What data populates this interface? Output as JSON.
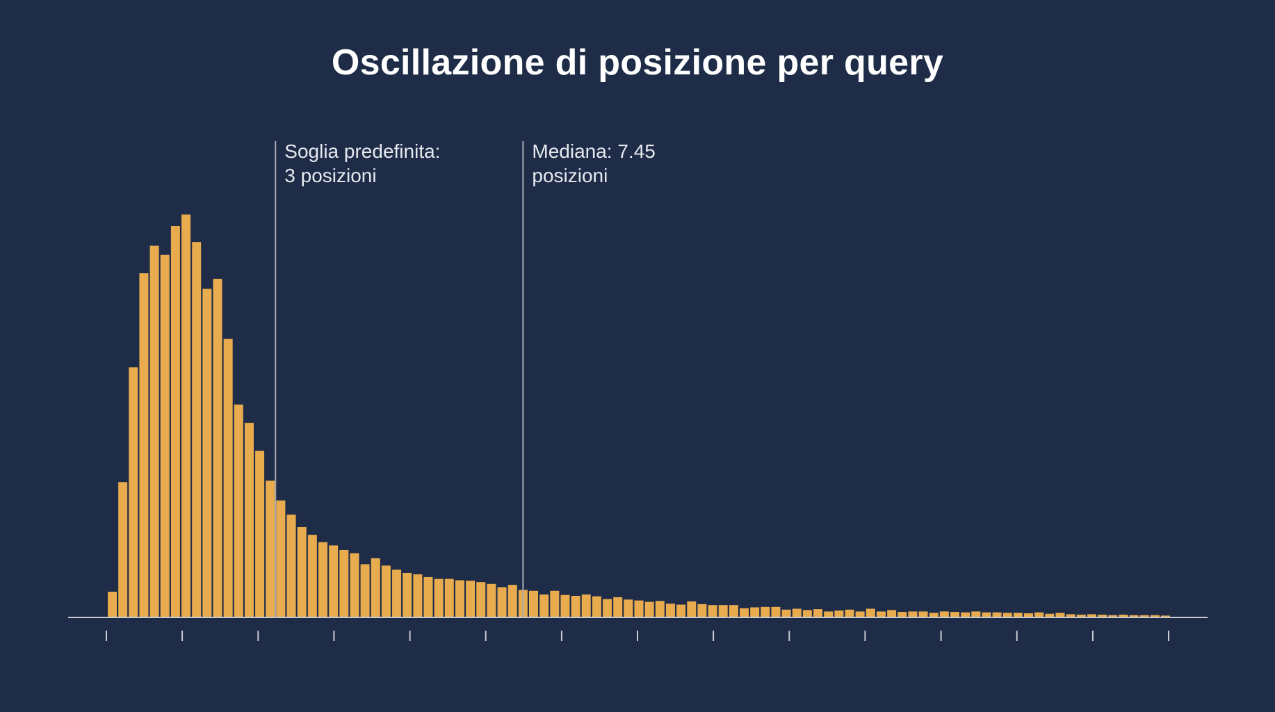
{
  "chart_data": {
    "type": "bar",
    "title": "Oscillazione di posizione per query",
    "xlabel": "",
    "ylabel": "",
    "bar_color": "#e8ac4e",
    "background_color": "#1f2c47",
    "axis_color": "#c9ccd2",
    "guide_color": "#a7abb4",
    "x_tick_count": 15,
    "grid": false,
    "values": [
      0.056,
      0.295,
      0.545,
      0.75,
      0.81,
      0.79,
      0.853,
      0.878,
      0.818,
      0.716,
      0.738,
      0.607,
      0.464,
      0.424,
      0.363,
      0.298,
      0.255,
      0.224,
      0.197,
      0.18,
      0.164,
      0.157,
      0.147,
      0.14,
      0.116,
      0.129,
      0.113,
      0.104,
      0.097,
      0.094,
      0.088,
      0.084,
      0.084,
      0.081,
      0.08,
      0.077,
      0.073,
      0.066,
      0.071,
      0.06,
      0.058,
      0.05,
      0.058,
      0.049,
      0.047,
      0.05,
      0.046,
      0.04,
      0.044,
      0.039,
      0.037,
      0.034,
      0.036,
      0.03,
      0.028,
      0.035,
      0.029,
      0.027,
      0.027,
      0.027,
      0.02,
      0.022,
      0.023,
      0.023,
      0.017,
      0.019,
      0.016,
      0.018,
      0.013,
      0.015,
      0.017,
      0.013,
      0.019,
      0.013,
      0.016,
      0.012,
      0.013,
      0.013,
      0.01,
      0.013,
      0.012,
      0.011,
      0.013,
      0.011,
      0.011,
      0.01,
      0.01,
      0.009,
      0.011,
      0.008,
      0.01,
      0.007,
      0.006,
      0.007,
      0.006,
      0.005,
      0.006,
      0.005,
      0.005,
      0.005,
      0.004
    ],
    "annotations": [
      {
        "label_line1": "Soglia predefinita:",
        "label_line2": "3 posizioni",
        "bar_index": 15.5
      },
      {
        "label_line1": "Mediana: 7.45",
        "label_line2": "posizioni",
        "bar_index": 39
      }
    ]
  }
}
